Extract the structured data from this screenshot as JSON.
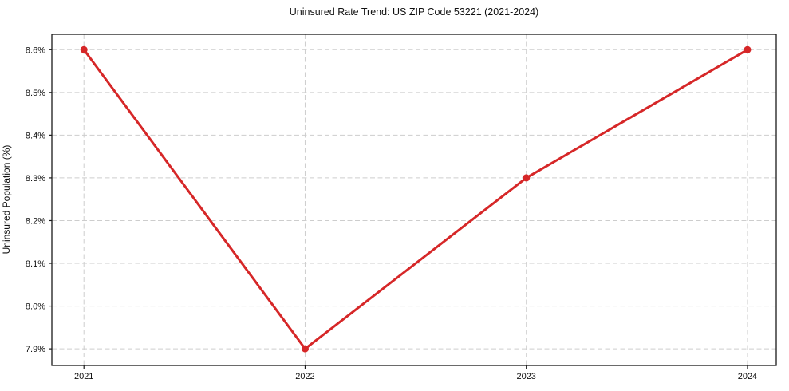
{
  "chart_data": {
    "type": "line",
    "title": "Uninsured Rate Trend: US ZIP Code 53221 (2021-2024)",
    "xlabel": "",
    "ylabel": "Uninsured Population (%)",
    "x": [
      2021,
      2022,
      2023,
      2024
    ],
    "values": [
      8.6,
      7.9,
      8.3,
      8.6
    ],
    "xtick_labels": [
      "2021",
      "2022",
      "2023",
      "2024"
    ],
    "ytick_values": [
      7.9,
      8.0,
      8.1,
      8.2,
      8.3,
      8.4,
      8.5,
      8.6
    ],
    "ytick_labels": [
      "7.9%",
      "8.0%",
      "8.1%",
      "8.2%",
      "8.3%",
      "8.4%",
      "8.5%",
      "8.6%"
    ],
    "xlim": [
      2020.855,
      2024.13
    ],
    "ylim": [
      7.861,
      8.636
    ],
    "grid": true,
    "legend": false,
    "line_color": "#d62728",
    "marker_color": "#d62728",
    "grid_color": "#cdcdcd",
    "frame_color": "#1a1a1a",
    "background_color": "#ffffff"
  }
}
